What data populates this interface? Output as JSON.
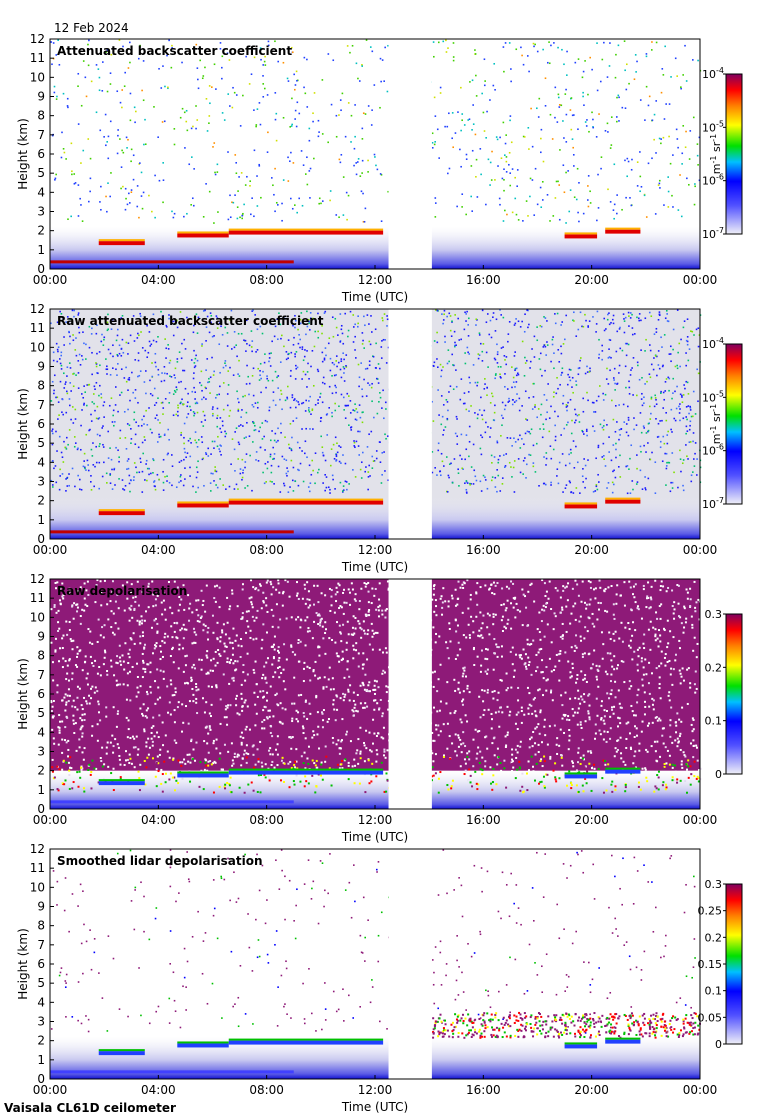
{
  "header": {
    "date": "12 Feb 2024"
  },
  "footer": {
    "instrument": "Vaisala CL61D ceilometer"
  },
  "colors": {
    "rainbow_scale": [
      "#f0f0f8",
      "#0000ff",
      "#00ff00",
      "#ffff00",
      "#ff0000",
      "#800080"
    ],
    "frame": "#000000",
    "data_gap": "#ffffff"
  },
  "chart_data": [
    {
      "type": "heatmap",
      "title": "Attenuated backscatter coefficient",
      "xlabel": "Time (UTC)",
      "ylabel": "Height (km)",
      "xticks": [
        "00:00",
        "04:00",
        "08:00",
        "12:00",
        "16:00",
        "20:00",
        "00:00"
      ],
      "yticks": [
        "0",
        "1",
        "2",
        "3",
        "4",
        "5",
        "6",
        "7",
        "8",
        "9",
        "10",
        "11",
        "12"
      ],
      "xlim_hours": [
        0,
        24
      ],
      "ylim_km": [
        0,
        12
      ],
      "data_gap_hours": [
        12.5,
        14.1
      ],
      "colorbar": {
        "scale": "log",
        "unit": "m-1 sr-1",
        "unit_main": "m",
        "unit_exp1": "-1",
        "unit_mid": " sr",
        "unit_exp2": "-1",
        "tick_base": "10",
        "ticks": [
          "-7",
          "-6",
          "-5",
          "-4"
        ]
      },
      "cloud_layers": [
        {
          "start_h": 1.8,
          "end_h": 3.5,
          "height_km": 1.35
        },
        {
          "start_h": 4.7,
          "end_h": 6.6,
          "height_km": 1.75
        },
        {
          "start_h": 6.6,
          "end_h": 12.3,
          "height_km": 1.9
        },
        {
          "start_h": 19.0,
          "end_h": 20.2,
          "height_km": 1.7
        },
        {
          "start_h": 20.5,
          "end_h": 21.8,
          "height_km": 1.95
        }
      ]
    },
    {
      "type": "heatmap",
      "title": "Raw attenuated backscatter coefficient",
      "xlabel": "Time (UTC)",
      "ylabel": "Height (km)",
      "xticks": [
        "00:00",
        "04:00",
        "08:00",
        "12:00",
        "16:00",
        "20:00",
        "00:00"
      ],
      "yticks": [
        "0",
        "1",
        "2",
        "3",
        "4",
        "5",
        "6",
        "7",
        "8",
        "9",
        "10",
        "11",
        "12"
      ],
      "xlim_hours": [
        0,
        24
      ],
      "ylim_km": [
        0,
        12
      ],
      "data_gap_hours": [
        12.5,
        14.1
      ],
      "colorbar": {
        "scale": "log",
        "unit": "m-1 sr-1",
        "unit_main": "m",
        "unit_exp1": "-1",
        "unit_mid": " sr",
        "unit_exp2": "-1",
        "tick_base": "10",
        "ticks": [
          "-7",
          "-6",
          "-5",
          "-4"
        ]
      }
    },
    {
      "type": "heatmap",
      "title": "Raw depolarisation",
      "xlabel": "Time (UTC)",
      "ylabel": "Height (km)",
      "xticks": [
        "00:00",
        "04:00",
        "08:00",
        "12:00",
        "16:00",
        "20:00",
        "00:00"
      ],
      "yticks": [
        "0",
        "1",
        "2",
        "3",
        "4",
        "5",
        "6",
        "7",
        "8",
        "9",
        "10",
        "11",
        "12"
      ],
      "xlim_hours": [
        0,
        24
      ],
      "ylim_km": [
        0,
        12
      ],
      "data_gap_hours": [
        12.5,
        14.1
      ],
      "colorbar": {
        "scale": "linear",
        "ticks": [
          "0",
          "0.1",
          "0.2",
          "0.3"
        ],
        "range": [
          0,
          0.3
        ]
      }
    },
    {
      "type": "heatmap",
      "title": "Smoothed lidar depolarisation",
      "xlabel": "Time (UTC)",
      "ylabel": "Height (km)",
      "xticks": [
        "00:00",
        "04:00",
        "08:00",
        "12:00",
        "16:00",
        "20:00",
        "00:00"
      ],
      "yticks": [
        "0",
        "1",
        "2",
        "3",
        "4",
        "5",
        "6",
        "7",
        "8",
        "9",
        "10",
        "11",
        "12"
      ],
      "xlim_hours": [
        0,
        24
      ],
      "ylim_km": [
        0,
        12
      ],
      "data_gap_hours": [
        12.5,
        14.1
      ],
      "colorbar": {
        "scale": "linear",
        "ticks": [
          "0",
          "0.05",
          "0.1",
          "0.15",
          "0.2",
          "0.25",
          "0.3"
        ],
        "range": [
          0,
          0.3
        ]
      }
    }
  ]
}
